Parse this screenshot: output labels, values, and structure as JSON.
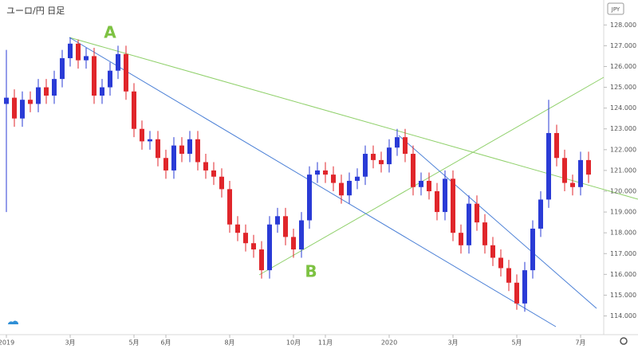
{
  "chart_data": {
    "type": "candlestick",
    "title": "ユーロ/円 日足",
    "currency": "JPY",
    "categories": [
      "2019",
      null,
      null,
      null,
      null,
      null,
      null,
      null,
      "3月",
      null,
      null,
      null,
      null,
      null,
      null,
      null,
      "5月",
      null,
      null,
      null,
      "6月",
      null,
      null,
      null,
      null,
      null,
      null,
      null,
      "8月",
      null,
      null,
      null,
      null,
      null,
      null,
      null,
      "10月",
      null,
      null,
      null,
      "11月",
      null,
      null,
      null,
      null,
      null,
      null,
      null,
      "2020",
      null,
      null,
      null,
      null,
      null,
      null,
      null,
      "3月",
      null,
      null,
      null,
      null,
      null,
      null,
      null,
      "5月",
      null,
      null,
      null,
      null,
      null,
      null,
      null,
      "7月",
      null
    ],
    "open": [
      124.2,
      124.5,
      123.5,
      124.4,
      124.2,
      125.0,
      124.6,
      125.4,
      126.4,
      127.1,
      126.3,
      126.5,
      124.6,
      125.0,
      125.8,
      126.6,
      124.8,
      123.0,
      122.4,
      122.5,
      121.6,
      121.0,
      122.2,
      121.8,
      122.5,
      121.4,
      121.0,
      120.7,
      120.1,
      118.4,
      118.0,
      117.5,
      117.2,
      116.2,
      118.4,
      118.8,
      117.8,
      117.2,
      118.6,
      120.8,
      121.0,
      120.8,
      120.4,
      119.8,
      120.5,
      120.7,
      121.8,
      121.5,
      121.3,
      122.1,
      122.6,
      121.8,
      120.2,
      120.5,
      120.0,
      119.0,
      120.6,
      118.0,
      117.4,
      119.4,
      118.5,
      117.4,
      116.8,
      116.3,
      115.6,
      114.6,
      116.2,
      118.2,
      119.6,
      122.8,
      121.6,
      120.4,
      120.2,
      121.5
    ],
    "high": [
      126.8,
      124.9,
      124.8,
      124.8,
      125.4,
      125.4,
      125.8,
      126.8,
      127.4,
      127.3,
      126.9,
      126.9,
      125.4,
      126.2,
      127.0,
      127.0,
      125.2,
      123.4,
      122.9,
      122.9,
      122.0,
      122.6,
      122.6,
      122.9,
      122.9,
      121.8,
      121.4,
      121.1,
      120.5,
      118.8,
      118.4,
      117.9,
      117.6,
      118.8,
      119.2,
      119.2,
      118.2,
      119.0,
      121.2,
      121.4,
      121.4,
      121.2,
      120.8,
      120.9,
      121.1,
      122.2,
      122.2,
      121.9,
      122.5,
      123.0,
      123.0,
      122.2,
      120.9,
      120.9,
      120.4,
      121.0,
      121.0,
      118.4,
      119.8,
      119.8,
      118.9,
      117.8,
      117.2,
      116.7,
      116.0,
      116.6,
      118.6,
      120.0,
      124.4,
      123.2,
      122.0,
      120.8,
      121.9,
      121.9
    ],
    "low": [
      119.0,
      123.1,
      123.1,
      123.8,
      123.8,
      124.2,
      124.2,
      125.0,
      126.0,
      125.9,
      125.9,
      124.2,
      124.2,
      124.6,
      125.4,
      124.4,
      122.6,
      122.0,
      122.0,
      121.2,
      120.6,
      120.6,
      121.4,
      121.4,
      121.0,
      120.6,
      120.3,
      119.7,
      118.0,
      117.6,
      117.1,
      116.8,
      115.8,
      115.8,
      118.0,
      117.4,
      116.8,
      116.8,
      118.2,
      120.4,
      120.4,
      120.0,
      119.4,
      119.4,
      120.1,
      120.3,
      121.1,
      120.9,
      120.9,
      121.7,
      121.4,
      119.8,
      119.8,
      119.6,
      118.6,
      118.6,
      117.6,
      117.0,
      117.0,
      118.1,
      117.0,
      116.4,
      115.9,
      115.2,
      114.3,
      114.2,
      115.8,
      117.8,
      119.2,
      121.2,
      120.0,
      119.8,
      119.8,
      120.4
    ],
    "close": [
      124.5,
      123.5,
      124.4,
      124.2,
      125.0,
      124.6,
      125.4,
      126.4,
      127.1,
      126.3,
      126.5,
      124.6,
      125.0,
      125.8,
      126.6,
      124.8,
      123.0,
      122.4,
      122.5,
      121.6,
      121.0,
      122.2,
      121.8,
      122.5,
      121.4,
      121.0,
      120.7,
      120.1,
      118.4,
      118.0,
      117.5,
      117.2,
      116.2,
      118.4,
      118.8,
      117.8,
      117.2,
      118.6,
      120.8,
      121.0,
      120.8,
      120.4,
      119.8,
      120.5,
      120.7,
      121.8,
      121.5,
      121.3,
      122.1,
      122.6,
      121.8,
      120.2,
      120.5,
      120.0,
      119.0,
      120.6,
      118.0,
      117.4,
      119.4,
      118.5,
      117.4,
      116.8,
      116.3,
      115.6,
      114.6,
      116.2,
      118.2,
      119.6,
      122.8,
      121.6,
      120.4,
      120.2,
      121.5,
      120.8
    ],
    "up_color": "#2a3bd6",
    "down_color": "#e0262b",
    "ylim": [
      113.1,
      129.2
    ],
    "yticks": [
      {
        "value": 114,
        "label": "114.000"
      },
      {
        "value": 115,
        "label": "115.000"
      },
      {
        "value": 116,
        "label": "116.000"
      },
      {
        "value": 117,
        "label": "117.000"
      },
      {
        "value": 118,
        "label": "118.000"
      },
      {
        "value": 119,
        "label": "119.000"
      },
      {
        "value": 120,
        "label": "120.000"
      },
      {
        "value": 121,
        "label": "121.000"
      },
      {
        "value": 122,
        "label": "122.000"
      },
      {
        "value": 123,
        "label": "123.000"
      },
      {
        "value": 124,
        "label": "124.000"
      },
      {
        "value": 125,
        "label": "125.000"
      },
      {
        "value": 126,
        "label": "126.000"
      },
      {
        "value": 127,
        "label": "127.000"
      },
      {
        "value": 128,
        "label": "128.000"
      }
    ],
    "grid": false,
    "annotations": [
      {
        "text": "A",
        "color": "#7dc242"
      },
      {
        "text": "B",
        "color": "#7dc242"
      }
    ]
  }
}
